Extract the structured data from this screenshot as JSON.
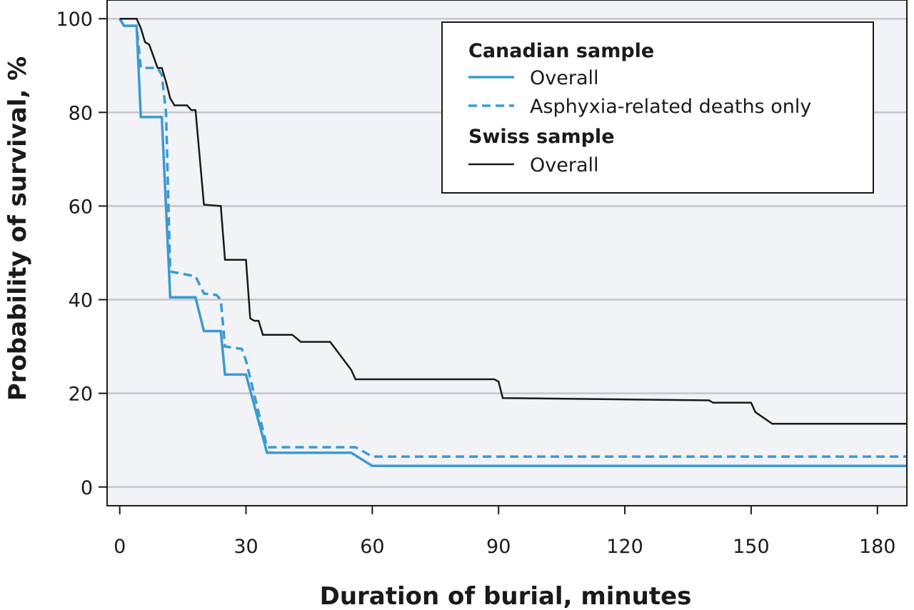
{
  "chart_data": {
    "type": "line",
    "subtype": "step (Kaplan-Meier survival curves)",
    "title": "",
    "xlabel": "Duration of burial, minutes",
    "ylabel": "Probability of survival, %",
    "xlim": [
      -3,
      187
    ],
    "ylim": [
      -4,
      104
    ],
    "xticks": [
      0,
      30,
      60,
      90,
      120,
      150,
      180
    ],
    "xtick_labels": [
      "0",
      "30",
      "60",
      "90",
      "120",
      "150",
      "180"
    ],
    "yticks": [
      0,
      20,
      40,
      60,
      80,
      100
    ],
    "ytick_labels": [
      "0",
      "20",
      "40",
      "60",
      "80",
      "100"
    ],
    "grid": "horizontal",
    "background": "#f2f3f7",
    "legend": {
      "placement": "top-right",
      "groups": [
        {
          "heading": "Canadian sample",
          "entries": [
            {
              "label": "Overall",
              "series_index": 0
            },
            {
              "label": "Asphyxia-related deaths only",
              "series_index": 1
            }
          ]
        },
        {
          "heading": "Swiss sample",
          "entries": [
            {
              "label": "Overall",
              "series_index": 2
            }
          ]
        }
      ]
    },
    "series": [
      {
        "name": "Canadian sample – Overall",
        "color": "#3b9ad2",
        "dash": "solid",
        "points": [
          [
            0,
            100
          ],
          [
            1,
            98.5
          ],
          [
            4,
            98.5
          ],
          [
            5,
            79
          ],
          [
            10,
            79
          ],
          [
            12,
            40.5
          ],
          [
            18,
            40.5
          ],
          [
            20,
            33.3
          ],
          [
            24,
            33.3
          ],
          [
            25,
            24
          ],
          [
            30,
            24
          ],
          [
            33,
            14
          ],
          [
            35,
            7.3
          ],
          [
            55,
            7.3
          ],
          [
            60,
            4.5
          ],
          [
            187,
            4.5
          ]
        ]
      },
      {
        "name": "Canadian sample – Asphyxia-related deaths only",
        "color": "#3b9ad2",
        "dash": "dashed",
        "points": [
          [
            0,
            100
          ],
          [
            1,
            98.5
          ],
          [
            4,
            98.5
          ],
          [
            5,
            89.5
          ],
          [
            9,
            89.5
          ],
          [
            10,
            88
          ],
          [
            11,
            80
          ],
          [
            12,
            46
          ],
          [
            18,
            45
          ],
          [
            20,
            41.3
          ],
          [
            23,
            41
          ],
          [
            24,
            40
          ],
          [
            25,
            30
          ],
          [
            29,
            29.5
          ],
          [
            30,
            27
          ],
          [
            35,
            8.5
          ],
          [
            56,
            8.5
          ],
          [
            58,
            7.5
          ],
          [
            60,
            6.5
          ],
          [
            187,
            6.5
          ]
        ]
      },
      {
        "name": "Swiss sample – Overall",
        "color": "#1a1a1a",
        "dash": "solid",
        "points": [
          [
            0,
            100
          ],
          [
            4,
            100
          ],
          [
            5,
            98
          ],
          [
            6,
            95
          ],
          [
            7,
            94.5
          ],
          [
            8,
            92
          ],
          [
            9,
            89.5
          ],
          [
            10,
            89.5
          ],
          [
            11,
            86.5
          ],
          [
            12,
            83
          ],
          [
            13,
            81.5
          ],
          [
            16,
            81.5
          ],
          [
            17,
            80.5
          ],
          [
            18,
            80.5
          ],
          [
            20,
            60.3
          ],
          [
            24,
            60
          ],
          [
            25,
            48.5
          ],
          [
            30,
            48.5
          ],
          [
            31,
            36
          ],
          [
            32,
            35.5
          ],
          [
            33,
            35.5
          ],
          [
            34,
            32.5
          ],
          [
            41,
            32.5
          ],
          [
            43,
            31
          ],
          [
            50,
            31
          ],
          [
            55,
            25
          ],
          [
            56,
            23
          ],
          [
            89,
            23
          ],
          [
            90,
            22.5
          ],
          [
            91,
            19
          ],
          [
            140,
            18.5
          ],
          [
            141,
            18
          ],
          [
            150,
            18
          ],
          [
            151,
            16
          ],
          [
            155,
            13.5
          ],
          [
            187,
            13.5
          ]
        ]
      }
    ]
  }
}
